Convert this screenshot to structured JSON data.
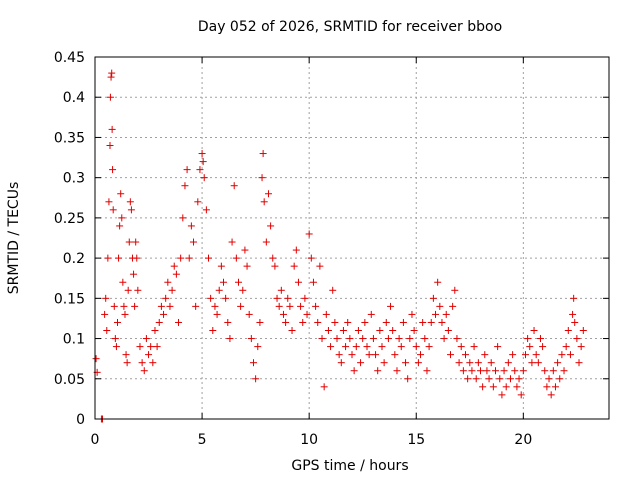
{
  "chart_data": {
    "type": "scatter",
    "title": "Day 052 of 2026, SRMTID for receiver bboo",
    "xlabel": "GPS time / hours",
    "ylabel": "SRMTID / TECUs",
    "xlim": [
      0,
      24
    ],
    "ylim": [
      0,
      0.45
    ],
    "xticks": [
      0,
      5,
      10,
      15,
      20
    ],
    "yticks": [
      0,
      0.05,
      0.1,
      0.15,
      0.2,
      0.25,
      0.3,
      0.35,
      0.4,
      0.45
    ],
    "xtick_labels": [
      "0",
      "5",
      "10",
      "15",
      "20"
    ],
    "ytick_labels": [
      "0",
      "0.05",
      "0.1",
      "0.15",
      "0.2",
      "0.25",
      "0.3",
      "0.35",
      "0.4",
      "0.45"
    ],
    "grid": true,
    "marker": "+",
    "color": "#e00000",
    "series": [
      {
        "name": "SRMTID",
        "points": [
          [
            0.05,
            0.075
          ],
          [
            0.1,
            0.058
          ],
          [
            0.3,
            0.0
          ],
          [
            0.35,
            0.0
          ],
          [
            0.45,
            0.13
          ],
          [
            0.5,
            0.15
          ],
          [
            0.55,
            0.11
          ],
          [
            0.6,
            0.2
          ],
          [
            0.65,
            0.27
          ],
          [
            0.7,
            0.34
          ],
          [
            0.72,
            0.4
          ],
          [
            0.75,
            0.425
          ],
          [
            0.78,
            0.43
          ],
          [
            0.8,
            0.36
          ],
          [
            0.82,
            0.31
          ],
          [
            0.85,
            0.26
          ],
          [
            0.9,
            0.14
          ],
          [
            0.95,
            0.1
          ],
          [
            1.0,
            0.09
          ],
          [
            1.05,
            0.12
          ],
          [
            1.1,
            0.2
          ],
          [
            1.15,
            0.24
          ],
          [
            1.2,
            0.28
          ],
          [
            1.25,
            0.25
          ],
          [
            1.3,
            0.17
          ],
          [
            1.35,
            0.14
          ],
          [
            1.4,
            0.13
          ],
          [
            1.45,
            0.08
          ],
          [
            1.5,
            0.07
          ],
          [
            1.55,
            0.16
          ],
          [
            1.6,
            0.22
          ],
          [
            1.65,
            0.27
          ],
          [
            1.7,
            0.26
          ],
          [
            1.75,
            0.2
          ],
          [
            1.8,
            0.18
          ],
          [
            1.85,
            0.14
          ],
          [
            1.9,
            0.22
          ],
          [
            1.95,
            0.2
          ],
          [
            2.0,
            0.16
          ],
          [
            2.1,
            0.09
          ],
          [
            2.2,
            0.07
          ],
          [
            2.3,
            0.06
          ],
          [
            2.4,
            0.1
          ],
          [
            2.5,
            0.08
          ],
          [
            2.6,
            0.09
          ],
          [
            2.7,
            0.07
          ],
          [
            2.8,
            0.11
          ],
          [
            2.9,
            0.09
          ],
          [
            3.0,
            0.12
          ],
          [
            3.1,
            0.14
          ],
          [
            3.2,
            0.13
          ],
          [
            3.3,
            0.15
          ],
          [
            3.4,
            0.17
          ],
          [
            3.5,
            0.14
          ],
          [
            3.6,
            0.16
          ],
          [
            3.7,
            0.19
          ],
          [
            3.8,
            0.18
          ],
          [
            3.9,
            0.12
          ],
          [
            4.0,
            0.2
          ],
          [
            4.1,
            0.25
          ],
          [
            4.2,
            0.29
          ],
          [
            4.3,
            0.31
          ],
          [
            4.4,
            0.2
          ],
          [
            4.5,
            0.24
          ],
          [
            4.6,
            0.22
          ],
          [
            4.7,
            0.14
          ],
          [
            4.8,
            0.27
          ],
          [
            4.9,
            0.31
          ],
          [
            5.0,
            0.33
          ],
          [
            5.05,
            0.32
          ],
          [
            5.1,
            0.3
          ],
          [
            5.2,
            0.26
          ],
          [
            5.3,
            0.2
          ],
          [
            5.4,
            0.15
          ],
          [
            5.5,
            0.11
          ],
          [
            5.6,
            0.14
          ],
          [
            5.7,
            0.13
          ],
          [
            5.8,
            0.16
          ],
          [
            5.9,
            0.19
          ],
          [
            6.0,
            0.17
          ],
          [
            6.1,
            0.15
          ],
          [
            6.2,
            0.12
          ],
          [
            6.3,
            0.1
          ],
          [
            6.4,
            0.22
          ],
          [
            6.5,
            0.29
          ],
          [
            6.6,
            0.2
          ],
          [
            6.7,
            0.17
          ],
          [
            6.8,
            0.14
          ],
          [
            6.9,
            0.16
          ],
          [
            7.0,
            0.21
          ],
          [
            7.1,
            0.19
          ],
          [
            7.2,
            0.13
          ],
          [
            7.3,
            0.1
          ],
          [
            7.4,
            0.07
          ],
          [
            7.5,
            0.05
          ],
          [
            7.6,
            0.09
          ],
          [
            7.7,
            0.12
          ],
          [
            7.8,
            0.3
          ],
          [
            7.85,
            0.33
          ],
          [
            7.9,
            0.27
          ],
          [
            8.0,
            0.22
          ],
          [
            8.1,
            0.28
          ],
          [
            8.2,
            0.24
          ],
          [
            8.3,
            0.2
          ],
          [
            8.4,
            0.19
          ],
          [
            8.5,
            0.15
          ],
          [
            8.6,
            0.14
          ],
          [
            8.7,
            0.16
          ],
          [
            8.8,
            0.13
          ],
          [
            8.9,
            0.12
          ],
          [
            9.0,
            0.15
          ],
          [
            9.1,
            0.14
          ],
          [
            9.2,
            0.11
          ],
          [
            9.3,
            0.19
          ],
          [
            9.4,
            0.21
          ],
          [
            9.5,
            0.17
          ],
          [
            9.6,
            0.14
          ],
          [
            9.7,
            0.12
          ],
          [
            9.8,
            0.15
          ],
          [
            9.9,
            0.13
          ],
          [
            10.0,
            0.23
          ],
          [
            10.1,
            0.2
          ],
          [
            10.2,
            0.17
          ],
          [
            10.3,
            0.14
          ],
          [
            10.4,
            0.12
          ],
          [
            10.5,
            0.19
          ],
          [
            10.6,
            0.1
          ],
          [
            10.7,
            0.04
          ],
          [
            10.8,
            0.13
          ],
          [
            10.9,
            0.11
          ],
          [
            11.0,
            0.09
          ],
          [
            11.1,
            0.16
          ],
          [
            11.2,
            0.12
          ],
          [
            11.3,
            0.1
          ],
          [
            11.4,
            0.08
          ],
          [
            11.5,
            0.07
          ],
          [
            11.6,
            0.11
          ],
          [
            11.7,
            0.09
          ],
          [
            11.8,
            0.12
          ],
          [
            11.9,
            0.1
          ],
          [
            12.0,
            0.08
          ],
          [
            12.1,
            0.06
          ],
          [
            12.2,
            0.09
          ],
          [
            12.3,
            0.11
          ],
          [
            12.4,
            0.07
          ],
          [
            12.5,
            0.1
          ],
          [
            12.6,
            0.12
          ],
          [
            12.7,
            0.09
          ],
          [
            12.8,
            0.08
          ],
          [
            12.9,
            0.13
          ],
          [
            13.0,
            0.1
          ],
          [
            13.1,
            0.08
          ],
          [
            13.2,
            0.06
          ],
          [
            13.3,
            0.11
          ],
          [
            13.4,
            0.09
          ],
          [
            13.5,
            0.07
          ],
          [
            13.6,
            0.12
          ],
          [
            13.7,
            0.1
          ],
          [
            13.8,
            0.14
          ],
          [
            13.9,
            0.11
          ],
          [
            14.0,
            0.08
          ],
          [
            14.1,
            0.06
          ],
          [
            14.2,
            0.1
          ],
          [
            14.3,
            0.09
          ],
          [
            14.4,
            0.12
          ],
          [
            14.5,
            0.07
          ],
          [
            14.6,
            0.05
          ],
          [
            14.7,
            0.1
          ],
          [
            14.8,
            0.13
          ],
          [
            14.9,
            0.11
          ],
          [
            15.0,
            0.09
          ],
          [
            15.1,
            0.07
          ],
          [
            15.2,
            0.08
          ],
          [
            15.3,
            0.12
          ],
          [
            15.4,
            0.1
          ],
          [
            15.5,
            0.06
          ],
          [
            15.6,
            0.09
          ],
          [
            15.7,
            0.12
          ],
          [
            15.8,
            0.15
          ],
          [
            15.9,
            0.13
          ],
          [
            16.0,
            0.17
          ],
          [
            16.1,
            0.14
          ],
          [
            16.2,
            0.12
          ],
          [
            16.3,
            0.1
          ],
          [
            16.4,
            0.13
          ],
          [
            16.5,
            0.11
          ],
          [
            16.6,
            0.08
          ],
          [
            16.7,
            0.14
          ],
          [
            16.8,
            0.16
          ],
          [
            16.9,
            0.1
          ],
          [
            17.0,
            0.07
          ],
          [
            17.1,
            0.09
          ],
          [
            17.2,
            0.06
          ],
          [
            17.3,
            0.08
          ],
          [
            17.4,
            0.05
          ],
          [
            17.5,
            0.07
          ],
          [
            17.6,
            0.06
          ],
          [
            17.7,
            0.09
          ],
          [
            17.8,
            0.05
          ],
          [
            17.9,
            0.07
          ],
          [
            18.0,
            0.06
          ],
          [
            18.1,
            0.04
          ],
          [
            18.2,
            0.08
          ],
          [
            18.3,
            0.06
          ],
          [
            18.4,
            0.05
          ],
          [
            18.5,
            0.07
          ],
          [
            18.6,
            0.04
          ],
          [
            18.7,
            0.06
          ],
          [
            18.8,
            0.09
          ],
          [
            18.9,
            0.05
          ],
          [
            19.0,
            0.03
          ],
          [
            19.1,
            0.06
          ],
          [
            19.2,
            0.04
          ],
          [
            19.3,
            0.07
          ],
          [
            19.4,
            0.05
          ],
          [
            19.5,
            0.08
          ],
          [
            19.6,
            0.06
          ],
          [
            19.7,
            0.04
          ],
          [
            19.8,
            0.05
          ],
          [
            19.9,
            0.03
          ],
          [
            20.0,
            0.06
          ],
          [
            20.1,
            0.08
          ],
          [
            20.2,
            0.1
          ],
          [
            20.3,
            0.09
          ],
          [
            20.4,
            0.07
          ],
          [
            20.5,
            0.11
          ],
          [
            20.6,
            0.08
          ],
          [
            20.7,
            0.07
          ],
          [
            20.8,
            0.1
          ],
          [
            20.9,
            0.09
          ],
          [
            21.0,
            0.06
          ],
          [
            21.1,
            0.04
          ],
          [
            21.2,
            0.05
          ],
          [
            21.3,
            0.03
          ],
          [
            21.4,
            0.06
          ],
          [
            21.5,
            0.04
          ],
          [
            21.6,
            0.07
          ],
          [
            21.7,
            0.05
          ],
          [
            21.8,
            0.08
          ],
          [
            21.9,
            0.06
          ],
          [
            22.0,
            0.09
          ],
          [
            22.1,
            0.11
          ],
          [
            22.2,
            0.08
          ],
          [
            22.3,
            0.13
          ],
          [
            22.35,
            0.15
          ],
          [
            22.4,
            0.12
          ],
          [
            22.5,
            0.1
          ],
          [
            22.6,
            0.07
          ],
          [
            22.7,
            0.09
          ],
          [
            22.8,
            0.11
          ]
        ]
      }
    ]
  }
}
